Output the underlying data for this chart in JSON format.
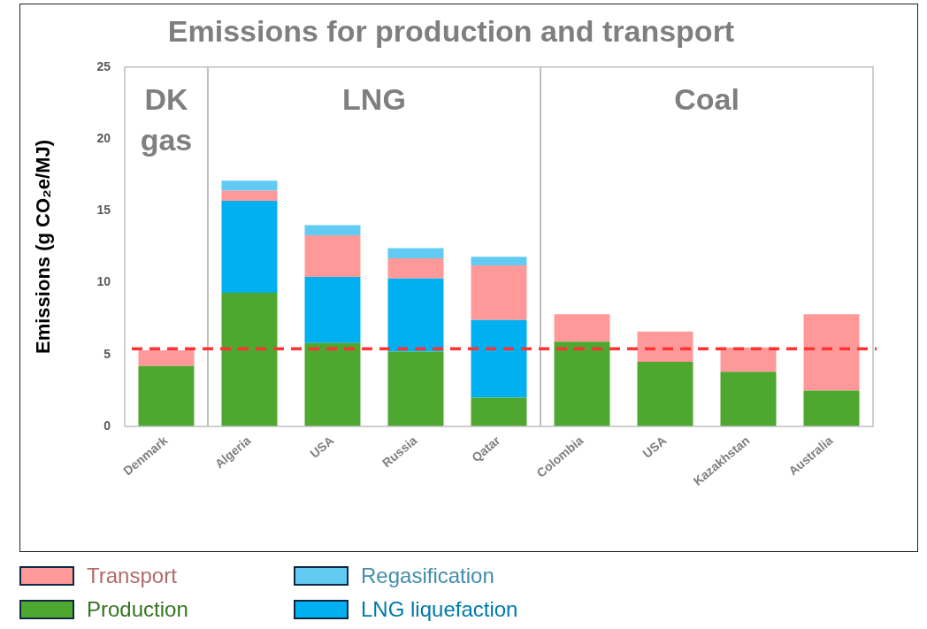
{
  "chart_data": {
    "type": "bar",
    "title": "Emissions for production and transport",
    "ylabel": "Emissions (g CO₂e/MJ)",
    "categories": [
      "Denmark",
      "Algeria",
      "USA",
      "Russia",
      "Qatar",
      "Colombia",
      "USA",
      "Kazakhstan",
      "Australia"
    ],
    "stacked": true,
    "ylim": [
      0,
      25
    ],
    "yticks": [
      0,
      5,
      10,
      15,
      20,
      25
    ],
    "grid": false,
    "legend": "bottom left",
    "series": [
      {
        "name": "Production",
        "color": "#4ea72e",
        "values": [
          4.2,
          9.3,
          5.8,
          5.2,
          2.0,
          5.9,
          4.5,
          3.8,
          2.5
        ]
      },
      {
        "name": "LNG liquefaction",
        "color": "#00b0f0",
        "values": [
          null,
          6.4,
          4.6,
          5.1,
          5.4,
          null,
          null,
          null,
          null
        ]
      },
      {
        "name": "Transport",
        "color": "#ff9999",
        "values": [
          1.1,
          0.7,
          2.9,
          1.4,
          3.8,
          1.9,
          2.1,
          1.7,
          5.3
        ]
      },
      {
        "name": "Regasification",
        "color": "#61cbf3",
        "values": [
          null,
          0.7,
          0.7,
          0.7,
          0.6,
          null,
          null,
          null,
          null
        ]
      }
    ],
    "ref_lines": [
      {
        "axis": "y",
        "value": 5.4,
        "color": "#ff3333",
        "line_style": "dashed"
      }
    ],
    "annotations": [
      "DK\ngas",
      "LNG",
      "Coal"
    ]
  }
}
